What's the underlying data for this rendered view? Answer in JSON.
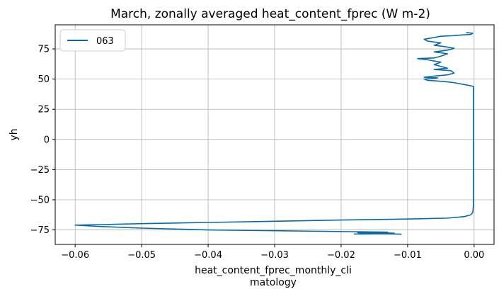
{
  "chart_data": {
    "type": "line",
    "title": "March, zonally averaged heat_content_fprec (W m-2)",
    "xlabel_lines": [
      "heat_content_fprec_monthly_cli",
      "matology"
    ],
    "ylabel": "yh",
    "xlim": [
      -0.063,
      0.003
    ],
    "ylim": [
      -87,
      95
    ],
    "xticks": [
      -0.06,
      -0.05,
      -0.04,
      -0.03,
      -0.02,
      -0.01,
      0.0
    ],
    "xtick_labels": [
      "−0.06",
      "−0.05",
      "−0.04",
      "−0.03",
      "−0.02",
      "−0.01",
      "0.00"
    ],
    "yticks": [
      -75,
      -50,
      -25,
      0,
      25,
      50,
      75
    ],
    "ytick_labels": [
      "−75",
      "−50",
      "−25",
      "0",
      "25",
      "50",
      "75"
    ],
    "grid": true,
    "legend_position": "top-left",
    "series": [
      {
        "name": "063",
        "color": "#0868a8",
        "points": [
          [
            -0.0109,
            -78.5
          ],
          [
            -0.0135,
            -78.2
          ],
          [
            -0.018,
            -78.4
          ],
          [
            -0.015,
            -78.0
          ],
          [
            -0.0175,
            -77.3
          ],
          [
            -0.014,
            -77.5
          ],
          [
            -0.012,
            -77.7
          ],
          [
            -0.016,
            -77.0
          ],
          [
            -0.013,
            -76.8
          ],
          [
            -0.0175,
            -76.5
          ],
          [
            -0.025,
            -76.0
          ],
          [
            -0.04,
            -75.0
          ],
          [
            -0.05,
            -73.5
          ],
          [
            -0.056,
            -72.2
          ],
          [
            -0.06,
            -71.0
          ],
          [
            -0.058,
            -70.8
          ],
          [
            -0.05,
            -69.8
          ],
          [
            -0.04,
            -68.8
          ],
          [
            -0.03,
            -67.8
          ],
          [
            -0.02,
            -66.8
          ],
          [
            -0.01,
            -66.0
          ],
          [
            -0.004,
            -65.2
          ],
          [
            -0.0015,
            -64.0
          ],
          [
            -0.0005,
            -62.5
          ],
          [
            -0.0002,
            -60.5
          ],
          [
            -0.0001,
            -55.0
          ],
          [
            -0.0001,
            0.0
          ],
          [
            -0.0001,
            44.0
          ],
          [
            -0.001,
            45.0
          ],
          [
            -0.003,
            47.0
          ],
          [
            -0.0045,
            48.0
          ],
          [
            -0.007,
            49.0
          ],
          [
            -0.0075,
            50.0
          ],
          [
            -0.0055,
            51.0
          ],
          [
            -0.0075,
            51.5
          ],
          [
            -0.006,
            52.5
          ],
          [
            -0.004,
            53.5
          ],
          [
            -0.003,
            55.0
          ],
          [
            -0.0035,
            57.0
          ],
          [
            -0.006,
            58.0
          ],
          [
            -0.004,
            59.0
          ],
          [
            -0.005,
            60.5
          ],
          [
            -0.006,
            62.0
          ],
          [
            -0.005,
            64.0
          ],
          [
            -0.007,
            66.0
          ],
          [
            -0.0085,
            67.0
          ],
          [
            -0.006,
            67.5
          ],
          [
            -0.005,
            69.0
          ],
          [
            -0.004,
            71.0
          ],
          [
            -0.006,
            72.5
          ],
          [
            -0.004,
            74.0
          ],
          [
            -0.003,
            75.5
          ],
          [
            -0.0045,
            77.0
          ],
          [
            -0.006,
            78.0
          ],
          [
            -0.005,
            80.0
          ],
          [
            -0.007,
            81.5
          ],
          [
            -0.0075,
            83.0
          ],
          [
            -0.006,
            84.5
          ],
          [
            -0.005,
            85.5
          ],
          [
            -0.003,
            86.0
          ],
          [
            -0.002,
            86.5
          ],
          [
            -0.0005,
            87.0
          ],
          [
            -0.0002,
            88.0
          ],
          [
            -0.0012,
            88.5
          ]
        ]
      }
    ]
  }
}
